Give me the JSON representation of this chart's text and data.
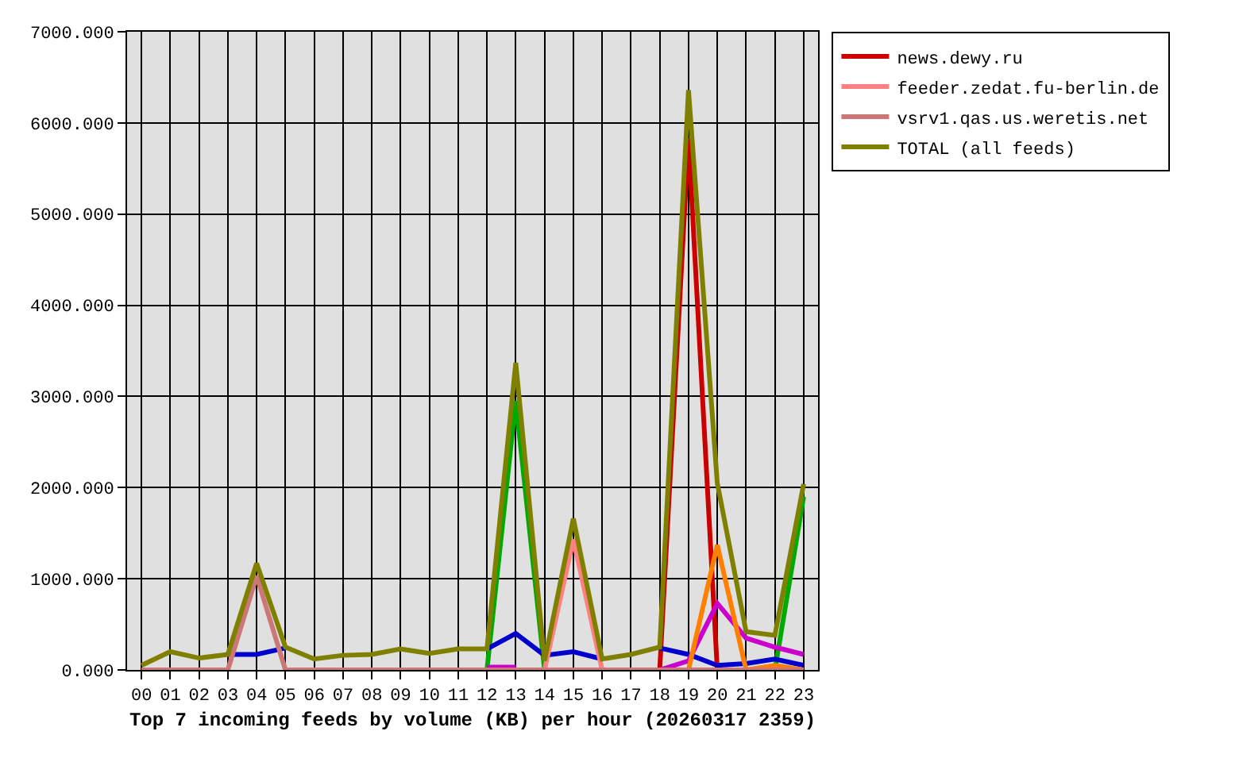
{
  "chart_data": {
    "type": "line",
    "xlabel": "Top 7 incoming feeds by volume (KB) per hour (20260317 2359)",
    "categories": [
      "00",
      "01",
      "02",
      "03",
      "04",
      "05",
      "06",
      "07",
      "08",
      "09",
      "10",
      "11",
      "12",
      "13",
      "14",
      "15",
      "16",
      "17",
      "18",
      "19",
      "20",
      "21",
      "22",
      "23"
    ],
    "series": [
      {
        "name": "news.dewy.ru",
        "color": "#cc0000",
        "values": [
          null,
          null,
          null,
          null,
          null,
          null,
          null,
          null,
          null,
          null,
          null,
          null,
          null,
          null,
          null,
          null,
          null,
          null,
          0,
          5830,
          0,
          null,
          null,
          null
        ]
      },
      {
        "color": "#00aa00",
        "values": [
          null,
          null,
          null,
          null,
          null,
          null,
          null,
          null,
          null,
          null,
          null,
          null,
          0,
          2950,
          0,
          null,
          null,
          null,
          null,
          null,
          null,
          null,
          0,
          1900
        ]
      },
      {
        "color": "#0000cc",
        "values": [
          null,
          null,
          null,
          170,
          170,
          240,
          null,
          null,
          null,
          null,
          null,
          null,
          230,
          400,
          160,
          200,
          120,
          null,
          240,
          170,
          50,
          70,
          120,
          50
        ]
      },
      {
        "color": "#cc00cc",
        "values": [
          null,
          null,
          null,
          null,
          null,
          null,
          null,
          null,
          null,
          null,
          null,
          null,
          30,
          30,
          null,
          null,
          null,
          null,
          0,
          100,
          730,
          350,
          250,
          170
        ]
      },
      {
        "name": "feeder.zedat.fu-berlin.de",
        "color": "#ff8080",
        "values": [
          null,
          null,
          null,
          null,
          null,
          null,
          null,
          null,
          null,
          null,
          null,
          null,
          null,
          null,
          0,
          1430,
          0,
          null,
          null,
          null,
          null,
          null,
          null,
          null
        ]
      },
      {
        "color": "#ff8000",
        "values": [
          null,
          null,
          null,
          null,
          null,
          null,
          null,
          null,
          null,
          null,
          null,
          null,
          null,
          null,
          null,
          null,
          null,
          null,
          null,
          0,
          1370,
          0,
          50,
          0
        ]
      },
      {
        "name": "vsrv1.qas.us.weretis.net",
        "color": "#cc7777",
        "values": [
          0,
          0,
          0,
          0,
          1030,
          0,
          0,
          0,
          0,
          0,
          0,
          0,
          0,
          0,
          0,
          0,
          0,
          0,
          0,
          0,
          0,
          0,
          0,
          0
        ]
      },
      {
        "name": "TOTAL (all feeds)",
        "color": "#808000",
        "values": [
          50,
          200,
          130,
          170,
          1170,
          250,
          120,
          160,
          170,
          230,
          180,
          230,
          230,
          3370,
          100,
          1660,
          120,
          170,
          250,
          6360,
          2050,
          420,
          380,
          2040
        ]
      }
    ],
    "ylim": [
      0,
      7000
    ],
    "yticks": [
      {
        "value": 0,
        "label": "0.000"
      },
      {
        "value": 1000,
        "label": "1000.000"
      },
      {
        "value": 2000,
        "label": "2000.000"
      },
      {
        "value": 3000,
        "label": "3000.000"
      },
      {
        "value": 4000,
        "label": "4000.000"
      },
      {
        "value": 5000,
        "label": "5000.000"
      },
      {
        "value": 6000,
        "label": "6000.000"
      },
      {
        "value": 7000,
        "label": "7000.000"
      }
    ],
    "grid": true,
    "legend": "top right"
  }
}
